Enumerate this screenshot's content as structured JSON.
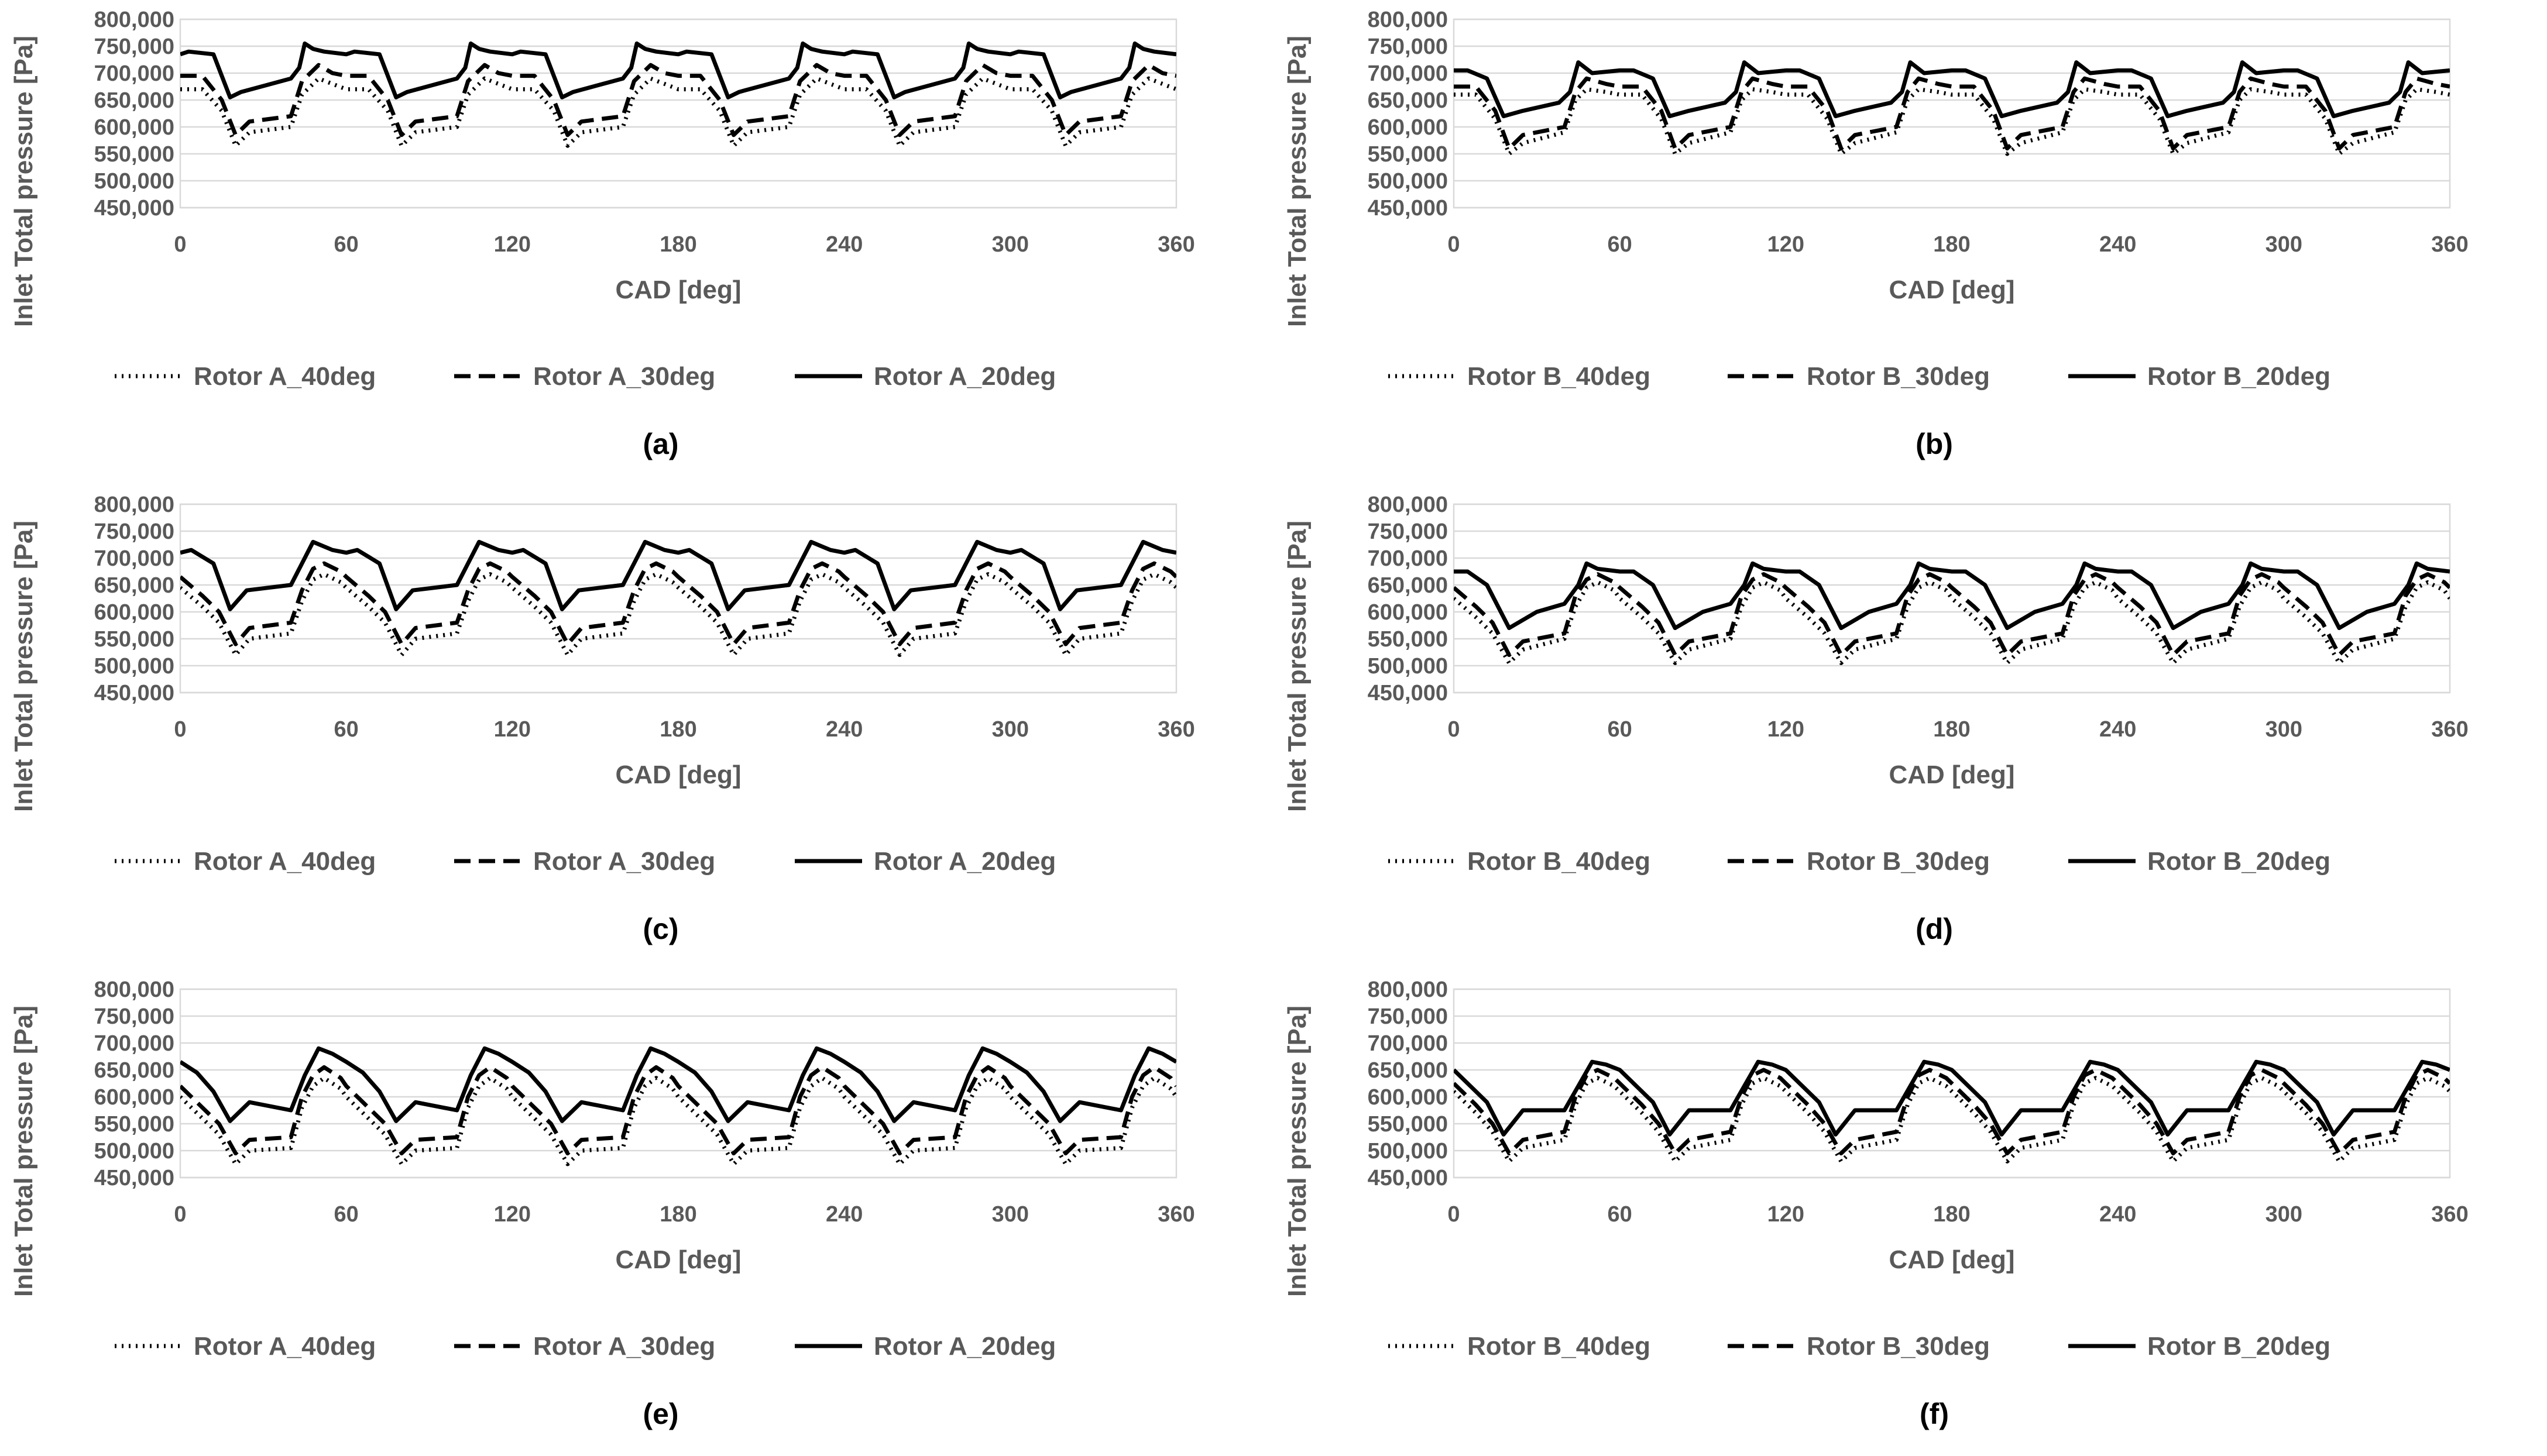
{
  "series_styles": {
    "s40": {
      "stroke": "#000000",
      "dash": "3 9"
    },
    "s30": {
      "stroke": "#000000",
      "dash": "28 14"
    },
    "s20": {
      "stroke": "#000000",
      "dash": ""
    }
  },
  "chart_data": [
    {
      "id": "a",
      "type": "line",
      "sublabel": "(a)",
      "xlabel": "CAD [deg]",
      "ylabel": "Inlet Total pressure [Pa]",
      "xlim": [
        0,
        360
      ],
      "ylim": [
        450000,
        800000
      ],
      "xticks": [
        0,
        60,
        120,
        180,
        240,
        300,
        360
      ],
      "xtick_labels": [
        "0",
        "60",
        "120",
        "180",
        "240",
        "300",
        "360"
      ],
      "yticks": [
        450000,
        500000,
        550000,
        600000,
        650000,
        700000,
        750000,
        800000
      ],
      "ytick_labels": [
        "450,000",
        "500,000",
        "550,000",
        "600,000",
        "650,000",
        "700,000",
        "750,000",
        "800,000"
      ],
      "period": 60,
      "series": [
        {
          "name": "Rotor A_40deg",
          "style": "s40",
          "x": [
            0,
            8,
            15,
            20,
            25,
            40,
            44,
            48,
            50,
            55,
            60
          ],
          "y": [
            670000,
            670000,
            630000,
            565000,
            590000,
            600000,
            660000,
            680000,
            690000,
            680000,
            670000
          ]
        },
        {
          "name": "Rotor A_30deg",
          "style": "s30",
          "x": [
            0,
            8,
            15,
            20,
            25,
            40,
            44,
            48,
            50,
            55,
            60
          ],
          "y": [
            695000,
            695000,
            650000,
            585000,
            610000,
            620000,
            685000,
            705000,
            715000,
            700000,
            695000
          ]
        },
        {
          "name": "Rotor A_20deg",
          "style": "s20",
          "x": [
            0,
            3,
            12,
            18,
            22,
            40,
            43,
            45,
            48,
            52,
            60
          ],
          "y": [
            735000,
            740000,
            735000,
            655000,
            665000,
            690000,
            710000,
            755000,
            745000,
            740000,
            735000
          ]
        }
      ]
    },
    {
      "id": "b",
      "type": "line",
      "sublabel": "(b)",
      "xlabel": "CAD [deg]",
      "ylabel": "Inlet Total pressure [Pa]",
      "xlim": [
        0,
        360
      ],
      "ylim": [
        450000,
        800000
      ],
      "xticks": [
        0,
        60,
        120,
        180,
        240,
        300,
        360
      ],
      "xtick_labels": [
        "0",
        "60",
        "120",
        "180",
        "240",
        "300",
        "360"
      ],
      "yticks": [
        450000,
        500000,
        550000,
        600000,
        650000,
        700000,
        750000,
        800000
      ],
      "ytick_labels": [
        "450,000",
        "500,000",
        "550,000",
        "600,000",
        "650,000",
        "700,000",
        "750,000",
        "800,000"
      ],
      "period": 60,
      "series": [
        {
          "name": "Rotor B_40deg",
          "style": "s40",
          "x": [
            0,
            8,
            15,
            20,
            25,
            40,
            44,
            48,
            55,
            60
          ],
          "y": [
            660000,
            660000,
            615000,
            550000,
            570000,
            590000,
            650000,
            670000,
            665000,
            660000
          ]
        },
        {
          "name": "Rotor B_30deg",
          "style": "s30",
          "x": [
            0,
            8,
            15,
            20,
            25,
            40,
            44,
            48,
            55,
            60
          ],
          "y": [
            675000,
            675000,
            630000,
            560000,
            585000,
            600000,
            665000,
            690000,
            680000,
            675000
          ]
        },
        {
          "name": "Rotor B_20deg",
          "style": "s20",
          "x": [
            0,
            5,
            12,
            18,
            25,
            38,
            42,
            45,
            50,
            60
          ],
          "y": [
            705000,
            705000,
            690000,
            620000,
            630000,
            645000,
            665000,
            720000,
            700000,
            705000
          ]
        }
      ]
    },
    {
      "id": "c",
      "type": "line",
      "sublabel": "(c)",
      "xlabel": "CAD [deg]",
      "ylabel": "Inlet Total pressure [Pa]",
      "xlim": [
        0,
        360
      ],
      "ylim": [
        450000,
        800000
      ],
      "xticks": [
        0,
        60,
        120,
        180,
        240,
        300,
        360
      ],
      "xtick_labels": [
        "0",
        "60",
        "120",
        "180",
        "240",
        "300",
        "360"
      ],
      "yticks": [
        450000,
        500000,
        550000,
        600000,
        650000,
        700000,
        750000,
        800000
      ],
      "ytick_labels": [
        "450,000",
        "500,000",
        "550,000",
        "600,000",
        "650,000",
        "700,000",
        "750,000",
        "800,000"
      ],
      "period": 60,
      "series": [
        {
          "name": "Rotor A_40deg",
          "style": "s40",
          "x": [
            0,
            8,
            14,
            20,
            25,
            40,
            44,
            48,
            52,
            58,
            60
          ],
          "y": [
            645000,
            610000,
            580000,
            520000,
            550000,
            560000,
            620000,
            660000,
            670000,
            655000,
            645000
          ]
        },
        {
          "name": "Rotor A_30deg",
          "style": "s30",
          "x": [
            0,
            8,
            14,
            20,
            25,
            40,
            44,
            48,
            52,
            58,
            60
          ],
          "y": [
            665000,
            630000,
            600000,
            540000,
            570000,
            580000,
            640000,
            680000,
            690000,
            675000,
            665000
          ]
        },
        {
          "name": "Rotor A_20deg",
          "style": "s20",
          "x": [
            0,
            4,
            12,
            18,
            24,
            40,
            44,
            48,
            55,
            60
          ],
          "y": [
            710000,
            715000,
            690000,
            605000,
            640000,
            650000,
            690000,
            730000,
            715000,
            710000
          ]
        }
      ]
    },
    {
      "id": "d",
      "type": "line",
      "sublabel": "(d)",
      "xlabel": "CAD [deg]",
      "ylabel": "Inlet Total pressure [Pa]",
      "xlim": [
        0,
        360
      ],
      "ylim": [
        450000,
        800000
      ],
      "xticks": [
        0,
        60,
        120,
        180,
        240,
        300,
        360
      ],
      "xtick_labels": [
        "0",
        "60",
        "120",
        "180",
        "240",
        "300",
        "360"
      ],
      "yticks": [
        450000,
        500000,
        550000,
        600000,
        650000,
        700000,
        750000,
        800000
      ],
      "ytick_labels": [
        "450,000",
        "500,000",
        "550,000",
        "600,000",
        "650,000",
        "700,000",
        "750,000",
        "800,000"
      ],
      "period": 60,
      "series": [
        {
          "name": "Rotor B_40deg",
          "style": "s40",
          "x": [
            0,
            8,
            14,
            20,
            25,
            40,
            44,
            48,
            52,
            58,
            60
          ],
          "y": [
            625000,
            590000,
            560000,
            505000,
            530000,
            550000,
            610000,
            645000,
            655000,
            640000,
            625000
          ]
        },
        {
          "name": "Rotor B_30deg",
          "style": "s30",
          "x": [
            0,
            8,
            14,
            20,
            25,
            40,
            44,
            48,
            52,
            58,
            60
          ],
          "y": [
            645000,
            610000,
            580000,
            520000,
            545000,
            560000,
            630000,
            660000,
            670000,
            655000,
            645000
          ]
        },
        {
          "name": "Rotor B_20deg",
          "style": "s20",
          "x": [
            0,
            5,
            12,
            20,
            30,
            40,
            45,
            48,
            52,
            60
          ],
          "y": [
            675000,
            675000,
            650000,
            570000,
            600000,
            615000,
            650000,
            690000,
            680000,
            675000
          ]
        }
      ]
    },
    {
      "id": "e",
      "type": "line",
      "sublabel": "(e)",
      "xlabel": "CAD [deg]",
      "ylabel": "Inlet Total pressure [Pa]",
      "xlim": [
        0,
        360
      ],
      "ylim": [
        450000,
        800000
      ],
      "xticks": [
        0,
        60,
        120,
        180,
        240,
        300,
        360
      ],
      "xtick_labels": [
        "0",
        "60",
        "120",
        "180",
        "240",
        "300",
        "360"
      ],
      "yticks": [
        450000,
        500000,
        550000,
        600000,
        650000,
        700000,
        750000,
        800000
      ],
      "ytick_labels": [
        "450,000",
        "500,000",
        "550,000",
        "600,000",
        "650,000",
        "700,000",
        "750,000",
        "800,000"
      ],
      "period": 60,
      "series": [
        {
          "name": "Rotor A_40deg",
          "style": "s40",
          "x": [
            0,
            8,
            14,
            20,
            25,
            40,
            44,
            48,
            52,
            58,
            60
          ],
          "y": [
            600000,
            560000,
            530000,
            475000,
            500000,
            505000,
            580000,
            620000,
            635000,
            615000,
            600000
          ]
        },
        {
          "name": "Rotor A_30deg",
          "style": "s30",
          "x": [
            0,
            8,
            14,
            20,
            25,
            40,
            44,
            48,
            52,
            58,
            60
          ],
          "y": [
            620000,
            580000,
            550000,
            495000,
            520000,
            525000,
            600000,
            640000,
            655000,
            635000,
            620000
          ]
        },
        {
          "name": "Rotor A_20deg",
          "style": "s20",
          "x": [
            0,
            6,
            12,
            18,
            25,
            40,
            45,
            50,
            55,
            60
          ],
          "y": [
            665000,
            645000,
            610000,
            555000,
            590000,
            575000,
            640000,
            690000,
            680000,
            665000
          ]
        }
      ]
    },
    {
      "id": "f",
      "type": "line",
      "sublabel": "(f)",
      "xlabel": "CAD [deg]",
      "ylabel": "Inlet Total pressure [Pa]",
      "xlim": [
        0,
        360
      ],
      "ylim": [
        450000,
        800000
      ],
      "xticks": [
        0,
        60,
        120,
        180,
        240,
        300,
        360
      ],
      "xtick_labels": [
        "0",
        "60",
        "120",
        "180",
        "240",
        "300",
        "360"
      ],
      "yticks": [
        450000,
        500000,
        550000,
        600000,
        650000,
        700000,
        750000,
        800000
      ],
      "ytick_labels": [
        "450,000",
        "500,000",
        "550,000",
        "600,000",
        "650,000",
        "700,000",
        "750,000",
        "800,000"
      ],
      "period": 60,
      "series": [
        {
          "name": "Rotor B_40deg",
          "style": "s40",
          "x": [
            0,
            8,
            14,
            20,
            25,
            40,
            44,
            48,
            52,
            58,
            60
          ],
          "y": [
            610000,
            570000,
            535000,
            480000,
            505000,
            520000,
            585000,
            625000,
            635000,
            620000,
            610000
          ]
        },
        {
          "name": "Rotor B_30deg",
          "style": "s30",
          "x": [
            0,
            8,
            14,
            20,
            25,
            40,
            44,
            48,
            52,
            58,
            60
          ],
          "y": [
            625000,
            585000,
            550000,
            495000,
            520000,
            535000,
            600000,
            640000,
            650000,
            635000,
            625000
          ]
        },
        {
          "name": "Rotor B_20deg",
          "style": "s20",
          "x": [
            0,
            6,
            12,
            18,
            25,
            40,
            45,
            50,
            55,
            60
          ],
          "y": [
            650000,
            620000,
            590000,
            530000,
            575000,
            575000,
            620000,
            665000,
            660000,
            650000
          ]
        }
      ]
    }
  ]
}
